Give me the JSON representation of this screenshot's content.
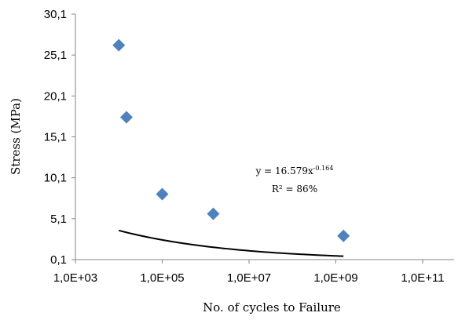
{
  "chart_data": {
    "type": "scatter",
    "title": "",
    "xlabel": "No. of cycles to Failure",
    "ylabel": "Stress  (MPa)",
    "x_scale": "log",
    "x_ticks": [
      "1,0E+03",
      "1,0E+05",
      "1,0E+07",
      "1,0E+09",
      "1,0E+11"
    ],
    "x_tick_values": [
      1000,
      100000,
      10000000,
      1000000000,
      100000000000
    ],
    "xlim": [
      1000,
      100000000000
    ],
    "y_ticks": [
      "0,1",
      "5,1",
      "10,1",
      "15,1",
      "20,1",
      "25,1",
      "30,1"
    ],
    "y_tick_values": [
      0.1,
      5.1,
      10.1,
      15.1,
      20.1,
      25.1,
      30.1
    ],
    "ylim": [
      0.1,
      30.1
    ],
    "grid": false,
    "marker": "diamond",
    "marker_color": "#4F81BD",
    "series": [
      {
        "x": [
          10000,
          15000,
          100000,
          1500000,
          1500000000
        ],
        "y": [
          26.3,
          17.5,
          8.1,
          5.7,
          3.0
        ]
      }
    ],
    "trendline": {
      "type": "power",
      "coefficient": 16.579,
      "exponent": -0.164,
      "x_range": [
        10000,
        1500000000
      ],
      "color": "#000000",
      "equation_prefix": "y = 16.579x",
      "equation_exponent": "-0.164",
      "r_squared_label": "R² = 86%"
    }
  }
}
